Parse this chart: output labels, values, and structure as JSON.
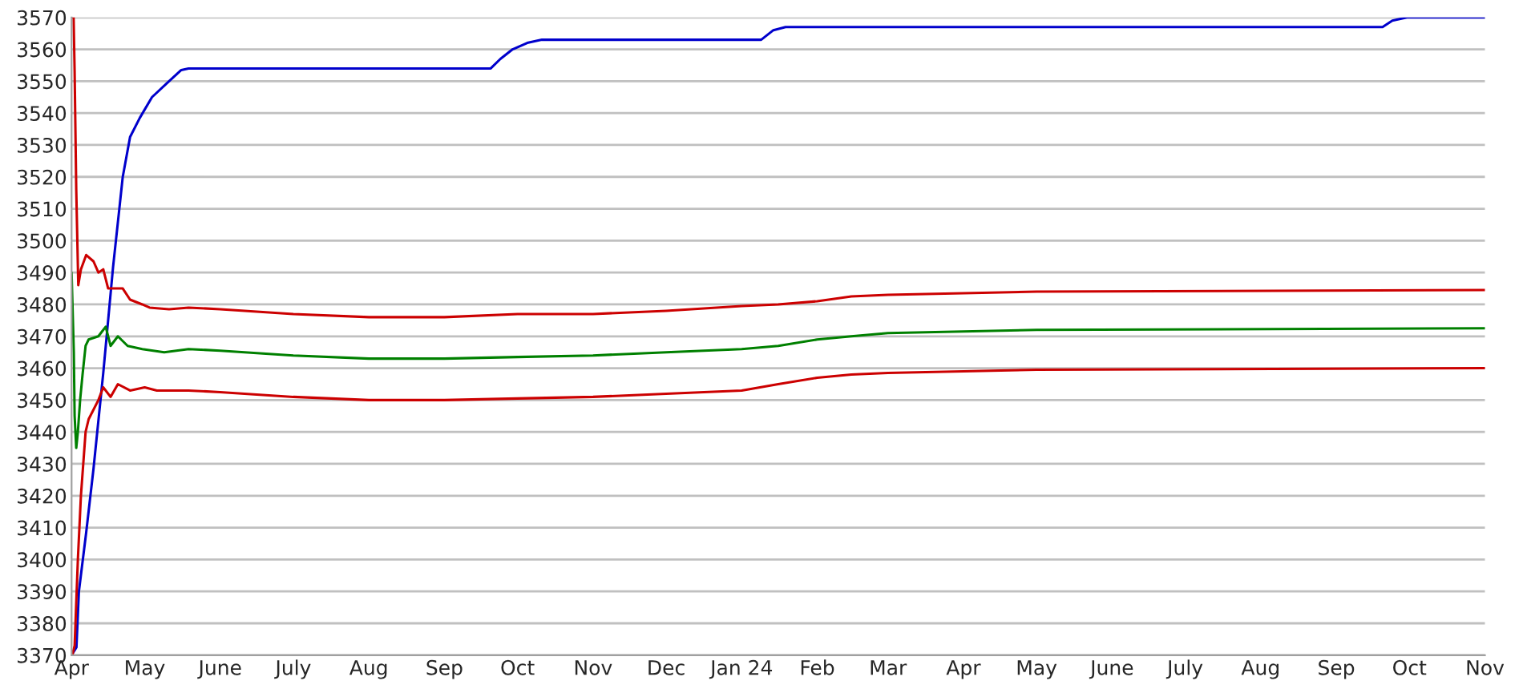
{
  "chart_data": {
    "type": "line",
    "grid": "y",
    "legend": false,
    "marker": "none",
    "line_style": "solid",
    "xlim": [
      "2023-04-01",
      "2024-11-01"
    ],
    "ylim": [
      3370,
      3570
    ],
    "xticks": [
      {
        "value": "2023-04-01",
        "label": "Apr"
      },
      {
        "value": "2023-05-01",
        "label": "May"
      },
      {
        "value": "2023-06-01",
        "label": "June"
      },
      {
        "value": "2023-07-01",
        "label": "July"
      },
      {
        "value": "2023-08-01",
        "label": "Aug"
      },
      {
        "value": "2023-09-01",
        "label": "Sep"
      },
      {
        "value": "2023-10-01",
        "label": "Oct"
      },
      {
        "value": "2023-11-01",
        "label": "Nov"
      },
      {
        "value": "2023-12-01",
        "label": "Dec"
      },
      {
        "value": "2024-01-01",
        "label": "Jan 24"
      },
      {
        "value": "2024-02-01",
        "label": "Feb"
      },
      {
        "value": "2024-03-01",
        "label": "Mar"
      },
      {
        "value": "2024-04-01",
        "label": "Apr"
      },
      {
        "value": "2024-05-01",
        "label": "May"
      },
      {
        "value": "2024-06-01",
        "label": "June"
      },
      {
        "value": "2024-07-01",
        "label": "July"
      },
      {
        "value": "2024-08-01",
        "label": "Aug"
      },
      {
        "value": "2024-09-01",
        "label": "Sep"
      },
      {
        "value": "2024-10-01",
        "label": "Oct"
      },
      {
        "value": "2024-11-01",
        "label": "Nov"
      }
    ],
    "yticks": [
      3370,
      3380,
      3390,
      3400,
      3410,
      3420,
      3430,
      3440,
      3450,
      3460,
      3470,
      3480,
      3490,
      3500,
      3510,
      3520,
      3530,
      3540,
      3550,
      3560,
      3570
    ],
    "series": [
      {
        "color": "#0000cc",
        "x": [
          "2023-04-01",
          "2023-04-03",
          "2023-04-04",
          "2023-04-07",
          "2023-04-10",
          "2023-04-14",
          "2023-04-18",
          "2023-04-22",
          "2023-04-25",
          "2023-04-29",
          "2023-05-04",
          "2023-05-11",
          "2023-05-16",
          "2023-05-19",
          "2023-09-20",
          "2023-09-24",
          "2023-09-29",
          "2023-10-05",
          "2023-10-11",
          "2024-01-09",
          "2024-01-14",
          "2024-01-19",
          "2024-09-20",
          "2024-09-24",
          "2024-09-30",
          "2024-11-01"
        ],
        "values": [
          3370,
          3372.5,
          3390,
          3408.5,
          3428.5,
          3458.5,
          3491.5,
          3520,
          3532.5,
          3538.5,
          3545,
          3550,
          3553.5,
          3554,
          3554,
          3557,
          3560,
          3562,
          3563,
          3563,
          3566,
          3567,
          3567,
          3569,
          3570,
          3570
        ]
      },
      {
        "color": "#cc0000",
        "x": [
          "2023-04-01",
          "2023-04-01T20:00",
          "2023-04-02T06:00",
          "2023-04-02T22:00",
          "2023-04-03T18:00",
          "2023-04-04T20:00",
          "2023-04-07",
          "2023-04-10",
          "2023-04-12",
          "2023-04-14",
          "2023-04-16",
          "2023-04-22",
          "2023-04-25",
          "2023-04-30",
          "2023-05-03",
          "2023-05-11",
          "2023-05-19",
          "2023-06-01",
          "2023-07-01",
          "2023-08-01",
          "2023-09-01",
          "2023-10-01",
          "2023-11-01",
          "2023-12-01",
          "2024-01-01",
          "2024-01-16",
          "2024-02-01",
          "2024-02-15",
          "2024-03-01",
          "2024-04-01",
          "2024-05-01",
          "2024-11-01"
        ],
        "values": [
          3570,
          3570,
          3553,
          3516,
          3486,
          3491,
          3495.5,
          3493.5,
          3490,
          3491,
          3485,
          3485,
          3481.5,
          3480,
          3479,
          3478.5,
          3479,
          3478.5,
          3477,
          3476,
          3476,
          3477,
          3477,
          3478,
          3479.5,
          3480,
          3481,
          3482.5,
          3483,
          3483.5,
          3484,
          3484.5
        ]
      },
      {
        "color": "#008000",
        "x": [
          "2023-04-01",
          "2023-04-01T22:00",
          "2023-04-02T06:00",
          "2023-04-02T22:00",
          "2023-04-03T14:00",
          "2023-04-04T12:00",
          "2023-04-05T12:00",
          "2023-04-06T18:00",
          "2023-04-08",
          "2023-04-12",
          "2023-04-13",
          "2023-04-15",
          "2023-04-17",
          "2023-04-20",
          "2023-04-24",
          "2023-04-30",
          "2023-05-09",
          "2023-05-19",
          "2023-06-01",
          "2023-07-01",
          "2023-08-01",
          "2023-09-01",
          "2023-10-01",
          "2023-11-01",
          "2023-12-01",
          "2024-01-01",
          "2024-01-16",
          "2024-02-01",
          "2024-02-15",
          "2024-03-01",
          "2024-04-01",
          "2024-05-01",
          "2024-11-01"
        ],
        "values": [
          3490,
          3465,
          3445,
          3435,
          3440,
          3450,
          3458,
          3467,
          3469,
          3470,
          3471,
          3473,
          3467,
          3470,
          3467,
          3466,
          3465,
          3466,
          3465.5,
          3464,
          3463,
          3463,
          3463.5,
          3464,
          3465,
          3466,
          3467,
          3469,
          3470,
          3471,
          3471.5,
          3472,
          3472.5
        ]
      },
      {
        "color": "#cc0000",
        "x": [
          "2023-04-01T07:00",
          "2023-04-02T06:00",
          "2023-04-03T14:00",
          "2023-04-04T20:00",
          "2023-04-06T18:00",
          "2023-04-08",
          "2023-04-12",
          "2023-04-14",
          "2023-04-17",
          "2023-04-20",
          "2023-04-25",
          "2023-05-01",
          "2023-05-06",
          "2023-05-19",
          "2023-06-01",
          "2023-07-01",
          "2023-08-01",
          "2023-09-01",
          "2023-10-01",
          "2023-11-01",
          "2023-12-01",
          "2024-01-01",
          "2024-01-16",
          "2024-02-01",
          "2024-02-15",
          "2024-03-01",
          "2024-04-01",
          "2024-05-01",
          "2024-11-01"
        ],
        "values": [
          3370,
          3373,
          3400,
          3420,
          3440,
          3444,
          3450,
          3454,
          3451,
          3455,
          3453,
          3454,
          3453,
          3453,
          3452.5,
          3451,
          3450,
          3450,
          3450.5,
          3451,
          3452,
          3453,
          3455,
          3457,
          3458,
          3458.5,
          3459,
          3459.5,
          3460
        ]
      }
    ]
  }
}
